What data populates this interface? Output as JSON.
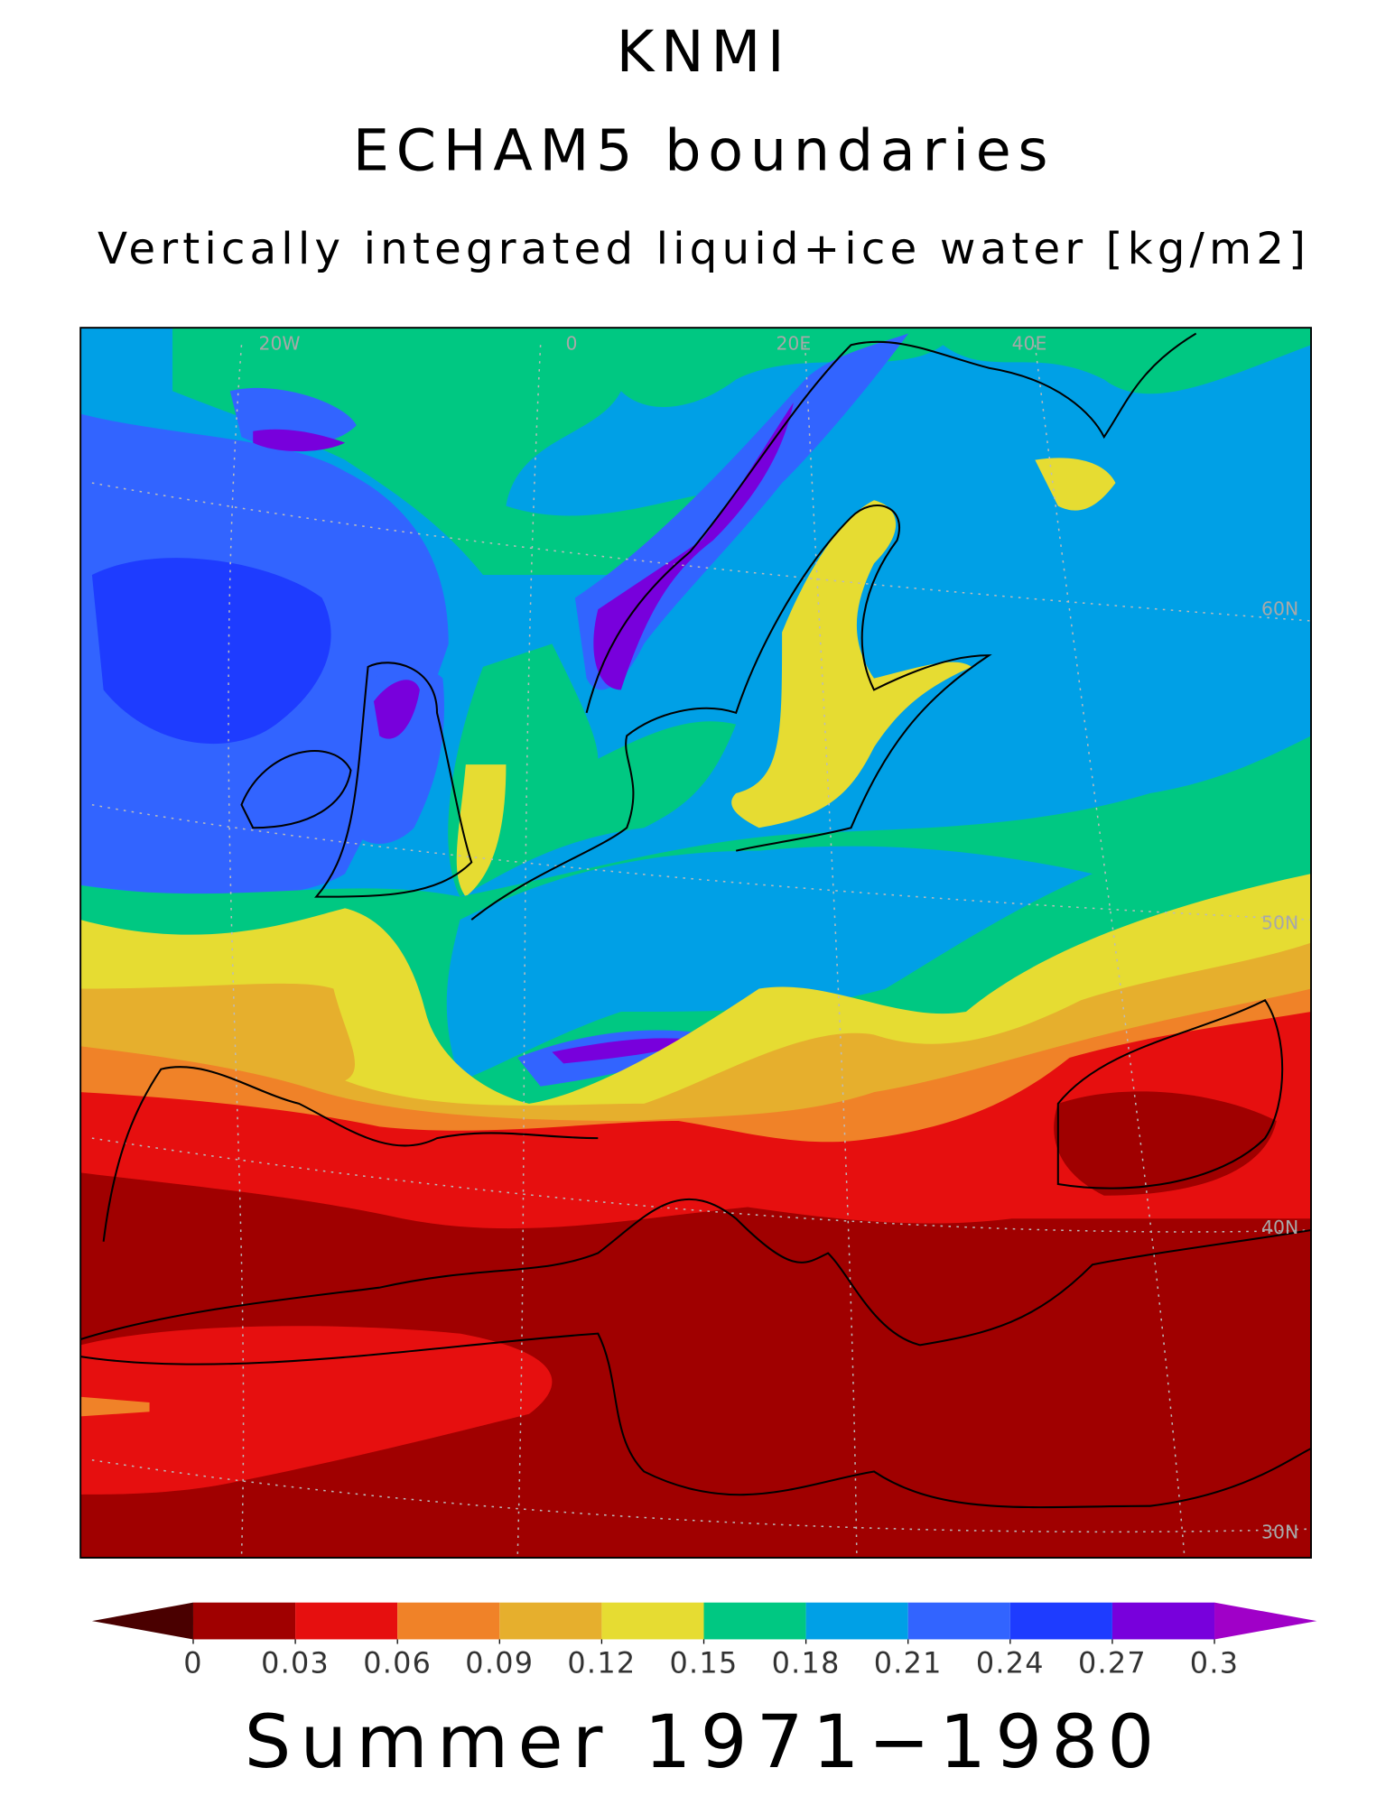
{
  "header": {
    "title": "KNMI",
    "subtitle": "ECHAM5 boundaries",
    "variable": "Vertically integrated liquid+ice water [kg/m2]"
  },
  "map": {
    "graticule_labels": [
      "20W",
      "0",
      "20E",
      "40E",
      "60N",
      "50N",
      "40N",
      "30N"
    ]
  },
  "colorbar": {
    "ticks": [
      0,
      0.03,
      0.06,
      0.09,
      0.12,
      0.15,
      0.18,
      0.21,
      0.24,
      0.27,
      0.3
    ],
    "colors": [
      "#a00000",
      "#e60f0f",
      "#f08228",
      "#e6af2d",
      "#e6dc32",
      "#00c882",
      "#00a0e6",
      "#3264ff",
      "#1e3cff",
      "#7800dc"
    ],
    "under_color": "#4a0000",
    "over_color": "#a000c8"
  },
  "footer": {
    "period": "Summer 1971−1980"
  }
}
